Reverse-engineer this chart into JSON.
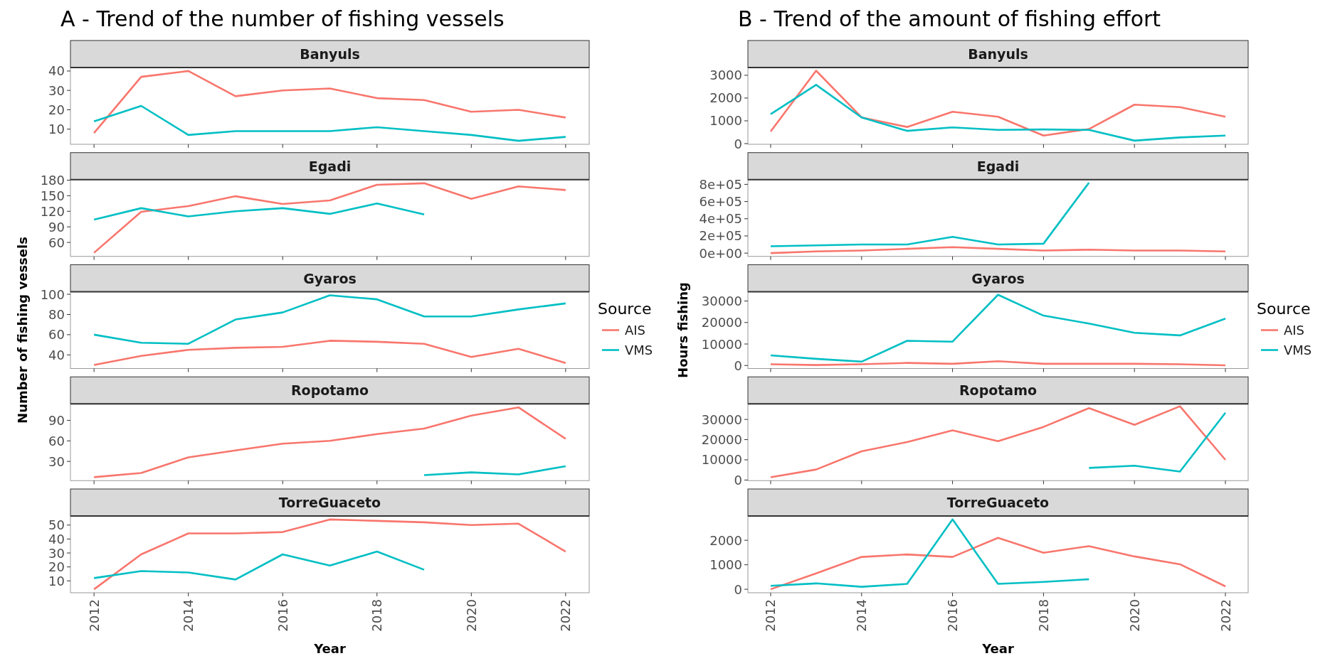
{
  "chart_data": [
    {
      "type": "line",
      "title": "Banyuls",
      "annotations": [
        "A -  Trend of the number of fishing vessels"
      ],
      "x": [
        2012,
        2013,
        2014,
        2015,
        2016,
        2017,
        2018,
        2019,
        2020,
        2021,
        2022
      ],
      "xlim": [
        2011.5,
        2022.5
      ],
      "xticks": [
        2012,
        2014,
        2016,
        2018,
        2020,
        2022
      ],
      "ylim": [
        2.2,
        41.8
      ],
      "yticks": [
        10,
        20,
        30,
        40
      ],
      "tick_labels": "y",
      "series": [
        {
          "color": "#f8766d",
          "values": [
            8,
            37,
            40,
            27,
            30,
            31,
            26,
            25,
            19,
            20,
            16
          ]
        },
        {
          "color": "#00bfc4",
          "values": [
            14,
            22,
            7,
            9,
            9,
            9,
            11,
            9,
            7,
            4,
            6
          ]
        }
      ]
    },
    {
      "type": "line",
      "title": "Egadi",
      "x": [
        2012,
        2013,
        2014,
        2015,
        2016,
        2017,
        2018,
        2019,
        2020,
        2021,
        2022
      ],
      "xlim": [
        2011.5,
        2022.5
      ],
      "xticks": [
        2012,
        2014,
        2016,
        2018,
        2020,
        2022
      ],
      "ylim": [
        33,
        181
      ],
      "yticks": [
        60,
        90,
        120,
        150,
        180
      ],
      "tick_labels": "y",
      "series": [
        {
          "color": "#f8766d",
          "values": [
            40,
            119,
            130,
            149,
            134,
            141,
            171,
            174,
            144,
            168,
            161
          ]
        },
        {
          "color": "#00bfc4",
          "values": [
            104,
            126,
            110,
            120,
            126,
            115,
            135,
            114,
            null,
            null,
            null
          ]
        }
      ]
    },
    {
      "type": "line",
      "title": "Gyaros",
      "ylabel": "Number of fishing vessels",
      "legend": "right",
      "legend_title": "Source",
      "x": [
        2012,
        2013,
        2014,
        2015,
        2016,
        2017,
        2018,
        2019,
        2020,
        2021,
        2022
      ],
      "xlim": [
        2011.5,
        2022.5
      ],
      "xticks": [
        2012,
        2014,
        2016,
        2018,
        2020,
        2022
      ],
      "ylim": [
        26.5,
        102.5
      ],
      "yticks": [
        40,
        60,
        80,
        100
      ],
      "tick_labels": "y",
      "series": [
        {
          "name": "AIS",
          "color": "#f8766d",
          "values": [
            30,
            39,
            45,
            47,
            48,
            54,
            53,
            51,
            38,
            46,
            32
          ]
        },
        {
          "name": "VMS",
          "color": "#00bfc4",
          "values": [
            60,
            52,
            51,
            75,
            82,
            99,
            95,
            78,
            78,
            85,
            91
          ]
        }
      ]
    },
    {
      "type": "line",
      "title": "Ropotamo",
      "x": [
        2012,
        2013,
        2014,
        2015,
        2016,
        2017,
        2018,
        2019,
        2020,
        2021,
        2022
      ],
      "xlim": [
        2011.5,
        2022.5
      ],
      "xticks": [
        2012,
        2014,
        2016,
        2018,
        2020,
        2022
      ],
      "ylim": [
        1.9,
        114.1
      ],
      "yticks": [
        30,
        60,
        90
      ],
      "tick_labels": "y",
      "series": [
        {
          "color": "#f8766d",
          "values": [
            7,
            13,
            36,
            46,
            56,
            60,
            70,
            78,
            97,
            109,
            63
          ]
        },
        {
          "color": "#00bfc4",
          "values": [
            null,
            null,
            null,
            null,
            null,
            null,
            null,
            10,
            14,
            11,
            23
          ]
        }
      ]
    },
    {
      "type": "line",
      "title": "TorreGuaceto",
      "xlabel": "Year",
      "x": [
        2012,
        2013,
        2014,
        2015,
        2016,
        2017,
        2018,
        2019,
        2020,
        2021,
        2022
      ],
      "xlim": [
        2011.5,
        2022.5
      ],
      "xticks": [
        2012,
        2014,
        2016,
        2018,
        2020,
        2022
      ],
      "ylim": [
        1.5,
        56.5
      ],
      "yticks": [
        10,
        20,
        30,
        40,
        50
      ],
      "series": [
        {
          "color": "#f8766d",
          "values": [
            4,
            29,
            44,
            44,
            45,
            54,
            53,
            52,
            50,
            51,
            31
          ]
        },
        {
          "color": "#00bfc4",
          "values": [
            12,
            17,
            16,
            11,
            29,
            21,
            31,
            18,
            null,
            null,
            null
          ]
        }
      ]
    },
    {
      "type": "line",
      "title": "Banyuls",
      "annotations": [
        "B -  Trend of the amount of fishing effort"
      ],
      "x": [
        2012,
        2013,
        2014,
        2015,
        2016,
        2017,
        2018,
        2019,
        2020,
        2021,
        2022
      ],
      "xlim": [
        2011.5,
        2022.5
      ],
      "xticks": [
        2012,
        2014,
        2016,
        2018,
        2020,
        2022
      ],
      "ylim": [
        -30,
        3340
      ],
      "yticks": [
        0,
        1000,
        2000,
        3000
      ],
      "tick_labels": "y",
      "series": [
        {
          "color": "#f8766d",
          "values": [
            530,
            3200,
            1150,
            730,
            1400,
            1180,
            350,
            640,
            1710,
            1600,
            1180
          ]
        },
        {
          "color": "#00bfc4",
          "values": [
            1290,
            2580,
            1150,
            560,
            710,
            600,
            620,
            600,
            130,
            270,
            350
          ]
        }
      ]
    },
    {
      "type": "line",
      "title": "Egadi",
      "x": [
        2012,
        2013,
        2014,
        2015,
        2016,
        2017,
        2018,
        2019,
        2020,
        2021,
        2022
      ],
      "xlim": [
        2011.5,
        2022.5
      ],
      "xticks": [
        2012,
        2014,
        2016,
        2018,
        2020,
        2022
      ],
      "ylim": [
        -38000,
        855000
      ],
      "yticks": [
        {
          "value": 0,
          "label": "0e+00"
        },
        {
          "value": 200000,
          "label": "2e+05"
        },
        {
          "value": 400000,
          "label": "4e+05"
        },
        {
          "value": 600000,
          "label": "6e+05"
        },
        {
          "value": 800000,
          "label": "8e+05"
        }
      ],
      "tick_labels": "y",
      "series": [
        {
          "color": "#f8766d",
          "values": [
            0,
            20000,
            30000,
            50000,
            70000,
            50000,
            30000,
            40000,
            30000,
            30000,
            20000
          ]
        },
        {
          "color": "#00bfc4",
          "values": [
            80000,
            90000,
            100000,
            100000,
            190000,
            100000,
            110000,
            820000,
            null,
            null,
            null
          ]
        }
      ]
    },
    {
      "type": "line",
      "title": "Gyaros",
      "ylabel": "Hours fishing",
      "legend": "right",
      "legend_title": "Source",
      "x": [
        2012,
        2013,
        2014,
        2015,
        2016,
        2017,
        2018,
        2019,
        2020,
        2021,
        2022
      ],
      "xlim": [
        2011.5,
        2022.5
      ],
      "xticks": [
        2012,
        2014,
        2016,
        2018,
        2020,
        2022
      ],
      "ylim": [
        -1400,
        34300
      ],
      "yticks": [
        0,
        10000,
        20000,
        30000
      ],
      "tick_labels": "y",
      "series": [
        {
          "name": "AIS",
          "color": "#f8766d",
          "values": [
            600,
            200,
            600,
            1200,
            800,
            2000,
            800,
            800,
            800,
            600,
            100
          ]
        },
        {
          "name": "VMS",
          "color": "#00bfc4",
          "values": [
            4700,
            3100,
            1800,
            11500,
            11100,
            32900,
            23200,
            19500,
            15200,
            14000,
            21800
          ]
        }
      ]
    },
    {
      "type": "line",
      "title": "Ropotamo",
      "x": [
        2012,
        2013,
        2014,
        2015,
        2016,
        2017,
        2018,
        2019,
        2020,
        2021,
        2022
      ],
      "xlim": [
        2011.5,
        2022.5
      ],
      "xticks": [
        2012,
        2014,
        2016,
        2018,
        2020,
        2022
      ],
      "ylim": [
        -300,
        37700
      ],
      "yticks": [
        0,
        10000,
        20000,
        30000
      ],
      "tick_labels": "y",
      "series": [
        {
          "color": "#f8766d",
          "values": [
            1400,
            5200,
            14200,
            18800,
            24600,
            19200,
            26300,
            35600,
            27300,
            36500,
            10000
          ]
        },
        {
          "color": "#00bfc4",
          "values": [
            null,
            null,
            null,
            null,
            null,
            null,
            null,
            6000,
            7100,
            4200,
            33300
          ]
        }
      ]
    },
    {
      "type": "line",
      "title": "TorreGuaceto",
      "xlabel": "Year",
      "x": [
        2012,
        2013,
        2014,
        2015,
        2016,
        2017,
        2018,
        2019,
        2020,
        2021,
        2022
      ],
      "xlim": [
        2011.5,
        2022.5
      ],
      "xticks": [
        2012,
        2014,
        2016,
        2018,
        2020,
        2022
      ],
      "ylim": [
        -142,
        2990
      ],
      "yticks": [
        0,
        1000,
        2000
      ],
      "series": [
        {
          "color": "#f8766d",
          "values": [
            0,
            650,
            1320,
            1420,
            1320,
            2100,
            1490,
            1760,
            1340,
            1020,
            120
          ]
        },
        {
          "color": "#00bfc4",
          "values": [
            140,
            240,
            100,
            220,
            2850,
            220,
            300,
            410,
            null,
            null,
            null
          ]
        }
      ]
    }
  ]
}
